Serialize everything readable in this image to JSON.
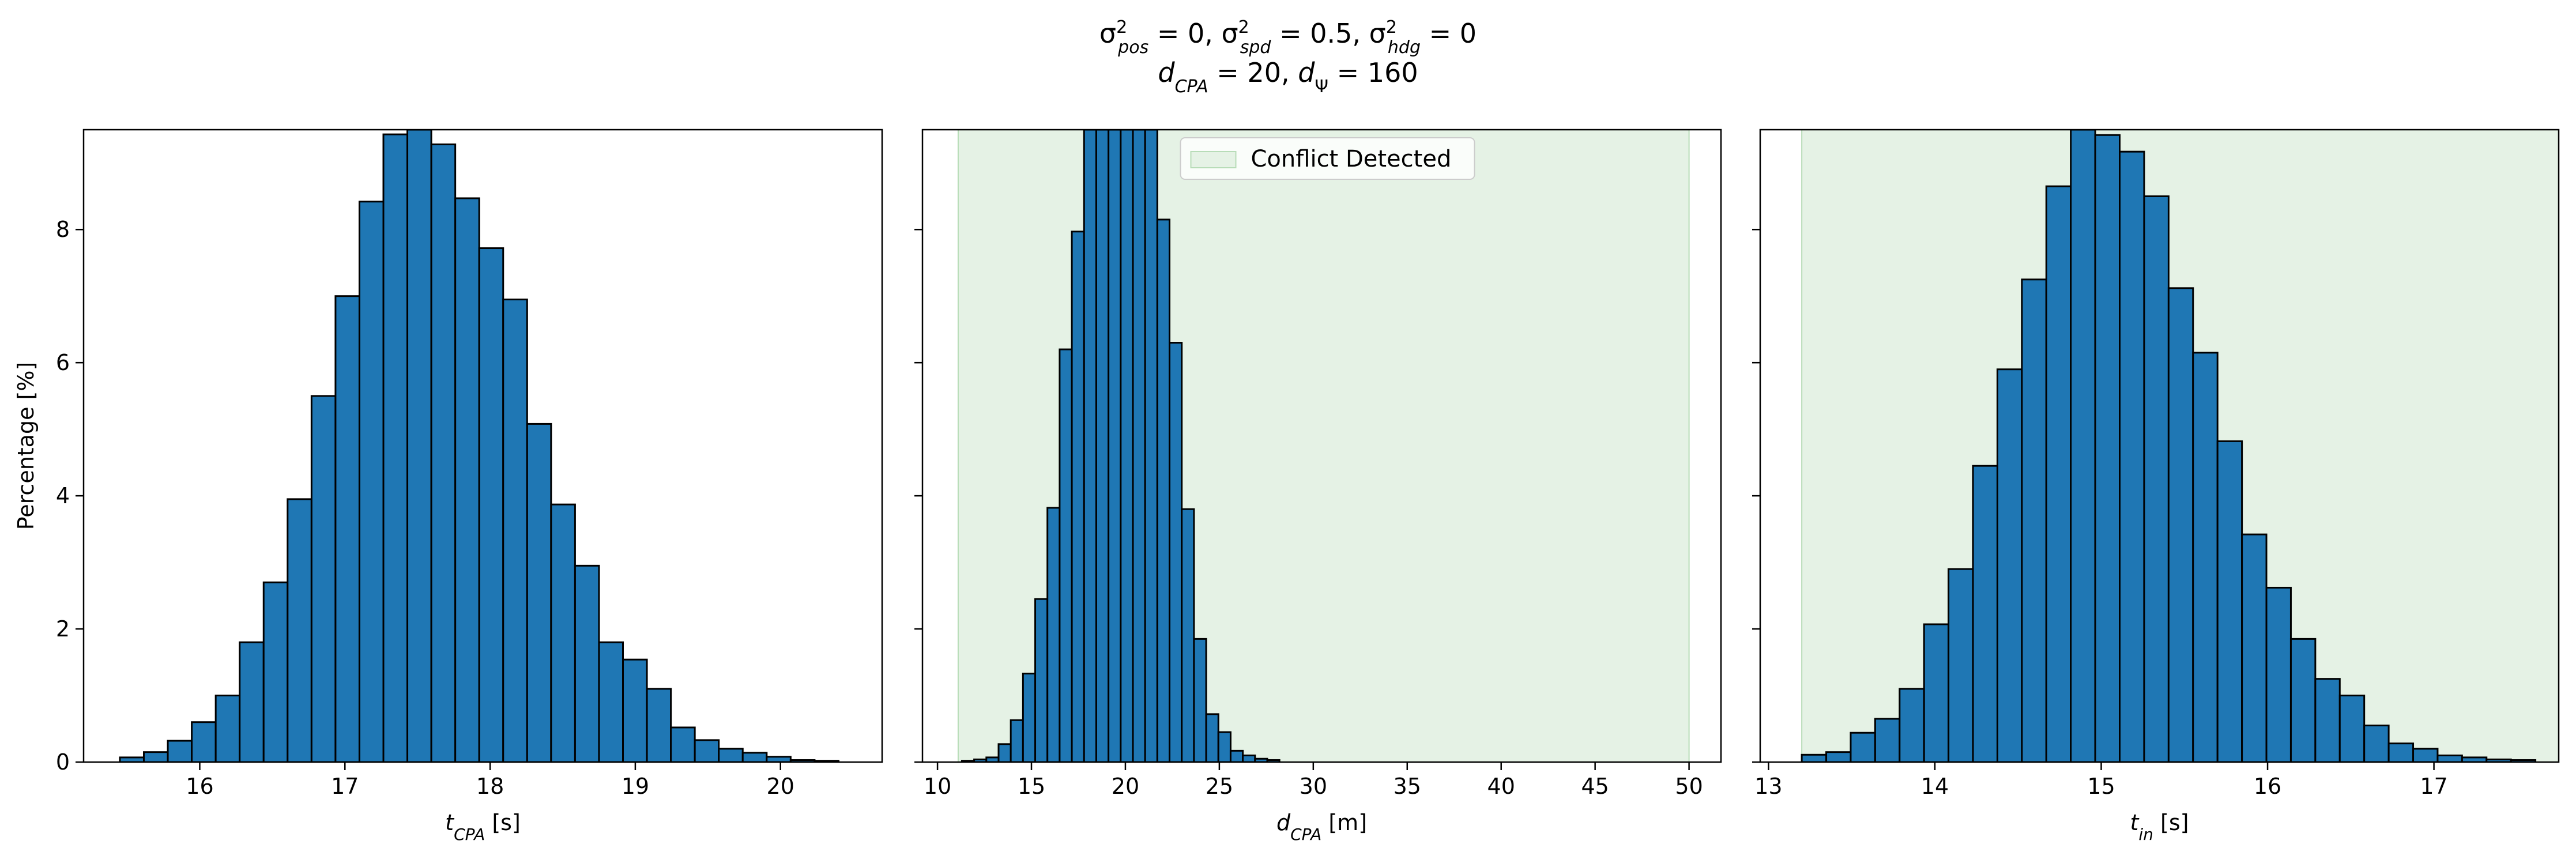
{
  "figure": {
    "title_line1": "σ²pos = 0, σ²spd = 0.5, σ²hdg = 0",
    "title_line2": "dCPA = 20, dΨ = 160"
  },
  "colors": {
    "bar_fill": "#1f77b4",
    "bar_edge": "#000000",
    "conflict_fill": "#e5f2e5",
    "conflict_edge": "#b7dcb7"
  },
  "chart_data": [
    {
      "type": "bar",
      "xlabel": "tCPA [s]",
      "ylabel": "Percentage [%]",
      "xlim": [
        15.2,
        20.7
      ],
      "ylim": [
        0,
        9.5
      ],
      "xticks": [
        16,
        17,
        18,
        19,
        20
      ],
      "yticks": [
        0,
        2,
        4,
        6,
        8
      ],
      "bin_start": 15.45,
      "bin_width": 0.165,
      "values": [
        0.07,
        0.15,
        0.32,
        0.6,
        1.0,
        1.8,
        2.7,
        3.95,
        5.5,
        7.0,
        8.42,
        9.43,
        9.5,
        9.28,
        8.47,
        7.72,
        6.95,
        5.08,
        3.87,
        2.95,
        1.8,
        1.54,
        1.1,
        0.52,
        0.33,
        0.2,
        0.14,
        0.08,
        0.03,
        0.02
      ],
      "conflict_region": null,
      "legend": null
    },
    {
      "type": "bar",
      "xlabel": "dCPA [m]",
      "ylabel": "",
      "xlim": [
        9.2,
        51.7
      ],
      "ylim": [
        0,
        9.5
      ],
      "xticks": [
        10,
        15,
        20,
        25,
        30,
        35,
        40,
        45,
        50
      ],
      "yticks": [
        0,
        2,
        4,
        6,
        8
      ],
      "bin_start": 11.3,
      "bin_width": 0.65,
      "values": [
        0.02,
        0.04,
        0.07,
        0.27,
        0.63,
        1.33,
        2.45,
        3.82,
        6.2,
        7.97,
        9.5,
        9.5,
        9.5,
        9.5,
        9.5,
        9.5,
        8.15,
        6.3,
        3.8,
        1.85,
        0.72,
        0.45,
        0.17,
        0.1,
        0.05,
        0.03
      ],
      "conflict_region": [
        11.1,
        50.0
      ],
      "legend": {
        "label": "Conflict Detected",
        "position": "upper center"
      }
    },
    {
      "type": "bar",
      "xlabel": "tin [s]",
      "ylabel": "",
      "xlim": [
        12.95,
        17.75
      ],
      "ylim": [
        0,
        9.5
      ],
      "xticks": [
        13,
        14,
        15,
        16,
        17
      ],
      "yticks": [
        0,
        2,
        4,
        6,
        8
      ],
      "bin_start": 13.2,
      "bin_width": 0.147,
      "values": [
        0.11,
        0.15,
        0.44,
        0.65,
        1.1,
        2.07,
        2.9,
        4.45,
        5.9,
        7.25,
        8.65,
        9.5,
        9.42,
        9.17,
        8.5,
        7.12,
        6.15,
        4.82,
        3.42,
        2.62,
        1.85,
        1.25,
        1.0,
        0.55,
        0.28,
        0.2,
        0.1,
        0.07,
        0.04,
        0.03
      ],
      "conflict_region": [
        13.2,
        17.75
      ],
      "legend": null
    }
  ]
}
